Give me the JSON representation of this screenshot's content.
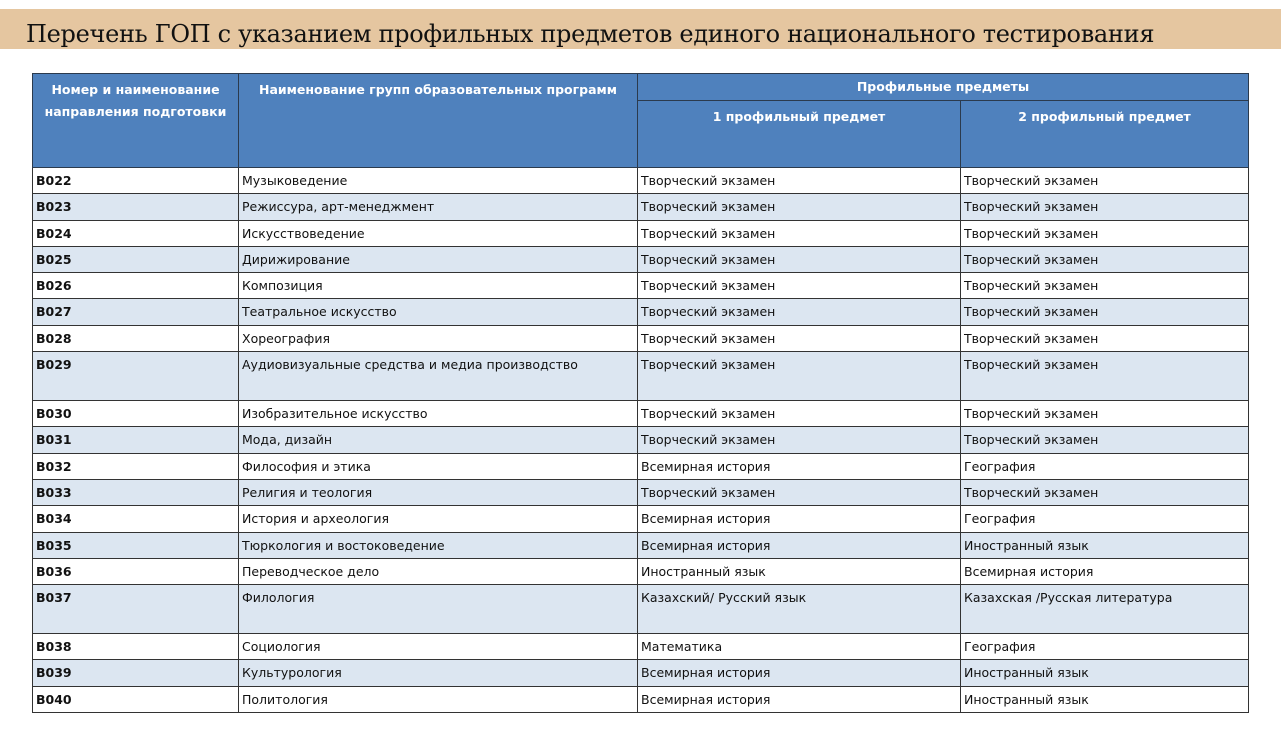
{
  "title": "Перечень ГОП с указанием профильных предметов единого национального тестирования",
  "colors": {
    "title_band": "#E5C6A0",
    "header": "#4F81BD",
    "alt_row": "#DCE6F1"
  },
  "table": {
    "headers": {
      "code": "Номер и наименование направления подготовки",
      "name": "Наименование групп образовательных программ",
      "profile": "Профильные предметы",
      "subject1": "1 профильный предмет",
      "subject2": "2 профильный предмет"
    },
    "rows": [
      {
        "code": "B022",
        "name": "Музыковедение",
        "s1": "Творческий экзамен",
        "s2": "Творческий экзамен"
      },
      {
        "code": "B023",
        "name": "Режиссура, арт-менеджмент",
        "s1": "Творческий экзамен",
        "s2": "Творческий экзамен"
      },
      {
        "code": "B024",
        "name": "Искусствоведение",
        "s1": "Творческий экзамен",
        "s2": "Творческий экзамен"
      },
      {
        "code": "B025",
        "name": "Дирижирование",
        "s1": "Творческий экзамен",
        "s2": "Творческий экзамен"
      },
      {
        "code": "B026",
        "name": "Композиция",
        "s1": "Творческий экзамен",
        "s2": "Творческий экзамен"
      },
      {
        "code": "B027",
        "name": "Театральное искусство",
        "s1": "Творческий экзамен",
        "s2": "Творческий экзамен"
      },
      {
        "code": "B028",
        "name": "Хореография",
        "s1": "Творческий экзамен",
        "s2": "Творческий экзамен"
      },
      {
        "code": "B029",
        "name": "Аудиовизуальные средства и медиа производство",
        "s1": "Творческий экзамен",
        "s2": "Творческий экзамен",
        "tall": true
      },
      {
        "code": "B030",
        "name": "Изобразительное искусство",
        "s1": "Творческий экзамен",
        "s2": "Творческий экзамен"
      },
      {
        "code": "B031",
        "name": "Мода, дизайн",
        "s1": "Творческий экзамен",
        "s2": "Творческий экзамен"
      },
      {
        "code": "B032",
        "name": "Философия и этика",
        "s1": "Всемирная история",
        "s2": "География"
      },
      {
        "code": "B033",
        "name": "Религия и теология",
        "s1": "Творческий экзамен",
        "s2": "Творческий экзамен"
      },
      {
        "code": "B034",
        "name": "История и археология",
        "s1": "Всемирная история",
        "s2": "География"
      },
      {
        "code": "B035",
        "name": "Тюркология и востоковедение",
        "s1": "Всемирная история",
        "s2": "Иностранный язык"
      },
      {
        "code": "B036",
        "name": "Переводческое дело",
        "s1": "Иностранный язык",
        "s2": "Всемирная история"
      },
      {
        "code": "B037",
        "name": "Филология",
        "s1": "Казахский/ Русский язык",
        "s2": "Казахская /Русская литература",
        "tall": true
      },
      {
        "code": "B038",
        "name": "Социология",
        "s1": "Математика",
        "s2": "География"
      },
      {
        "code": "B039",
        "name": "Культурология",
        "s1": "Всемирная история",
        "s2": "Иностранный язык"
      },
      {
        "code": "B040",
        "name": "Политология",
        "s1": "Всемирная история",
        "s2": "Иностранный язык"
      }
    ]
  }
}
